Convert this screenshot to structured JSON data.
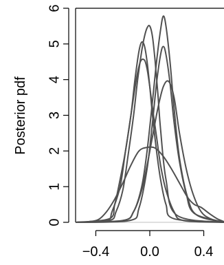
{
  "chart_data": {
    "type": "line",
    "title": "",
    "xlabel": "",
    "ylabel": "Posterior pdf",
    "xlim": [
      -0.55,
      0.55
    ],
    "ylim": [
      0,
      6
    ],
    "xticks": [
      -0.4,
      0.0,
      0.4
    ],
    "xtick_labels": [
      "−0.4",
      "0.0",
      "0.4"
    ],
    "yticks": [
      0,
      1,
      2,
      3,
      4,
      5,
      6
    ],
    "ytick_labels": [
      "0",
      "1",
      "2",
      "3",
      "4",
      "5",
      "6"
    ],
    "grid": false,
    "zero_baseline": true,
    "colors": {
      "lines": "#505050",
      "axes": "#000000",
      "baseline": "#bfbfbf"
    },
    "series": [
      {
        "x": [
          -0.55,
          -0.3,
          -0.25,
          -0.2,
          -0.16,
          -0.12,
          -0.09,
          -0.06,
          -0.04,
          -0.02,
          0.0,
          0.02,
          0.04,
          0.06,
          0.08,
          0.12,
          0.2,
          0.55
        ],
        "y": [
          0,
          0.05,
          0.3,
          0.9,
          1.9,
          3.0,
          4.0,
          4.8,
          5.2,
          5.45,
          5.5,
          5.2,
          4.5,
          3.6,
          2.6,
          1.2,
          0.2,
          0
        ]
      },
      {
        "x": [
          -0.55,
          -0.32,
          -0.28,
          -0.22,
          -0.18,
          -0.14,
          -0.11,
          -0.08,
          -0.06,
          -0.04,
          -0.02,
          0.0,
          0.02,
          0.05,
          0.08,
          0.12,
          0.18,
          0.55
        ],
        "y": [
          0,
          0.05,
          0.3,
          1.0,
          2.0,
          3.0,
          4.0,
          4.8,
          5.05,
          4.95,
          4.5,
          3.8,
          3.0,
          2.0,
          1.2,
          0.5,
          0.1,
          0
        ]
      },
      {
        "x": [
          -0.55,
          -0.3,
          -0.26,
          -0.22,
          -0.18,
          -0.14,
          -0.1,
          -0.07,
          -0.04,
          -0.02,
          0.0,
          0.02,
          0.05,
          0.08,
          0.12,
          0.18,
          0.25,
          0.55
        ],
        "y": [
          0,
          0.1,
          0.5,
          1.2,
          2.0,
          3.0,
          4.0,
          4.5,
          4.55,
          4.3,
          3.8,
          3.2,
          2.4,
          1.6,
          0.9,
          0.3,
          0.05,
          0
        ]
      },
      {
        "x": [
          -0.55,
          -0.2,
          -0.12,
          -0.06,
          -0.02,
          0.02,
          0.05,
          0.08,
          0.1,
          0.12,
          0.15,
          0.18,
          0.22,
          0.28,
          0.35,
          0.55
        ],
        "y": [
          0,
          0.05,
          0.3,
          1.0,
          2.0,
          3.4,
          4.5,
          5.4,
          5.78,
          5.5,
          4.5,
          3.2,
          1.8,
          0.7,
          0.2,
          0
        ]
      },
      {
        "x": [
          -0.55,
          -0.15,
          -0.08,
          -0.02,
          0.02,
          0.05,
          0.08,
          0.1,
          0.12,
          0.15,
          0.18,
          0.22,
          0.27,
          0.33,
          0.55
        ],
        "y": [
          0,
          0.05,
          0.4,
          1.5,
          2.8,
          3.9,
          4.7,
          4.93,
          4.7,
          3.9,
          2.8,
          1.7,
          0.8,
          0.25,
          0
        ]
      },
      {
        "x": [
          -0.55,
          -0.2,
          -0.12,
          -0.06,
          -0.02,
          0.02,
          0.06,
          0.1,
          0.14,
          0.18,
          0.22,
          0.27,
          0.32,
          0.38,
          0.45,
          0.55
        ],
        "y": [
          0,
          0.05,
          0.3,
          0.9,
          1.6,
          2.4,
          3.2,
          3.8,
          3.95,
          3.5,
          2.5,
          1.5,
          0.8,
          0.3,
          0.1,
          0
        ]
      },
      {
        "x": [
          -0.55,
          -0.45,
          -0.38,
          -0.32,
          -0.26,
          -0.2,
          -0.14,
          -0.08,
          -0.02,
          0.04,
          0.1,
          0.16,
          0.22,
          0.28,
          0.33,
          0.38,
          0.44,
          0.5,
          0.55
        ],
        "y": [
          0,
          0.02,
          0.08,
          0.3,
          0.65,
          1.1,
          1.6,
          2.0,
          2.1,
          2.08,
          1.85,
          1.5,
          1.1,
          0.7,
          0.5,
          0.42,
          0.25,
          0.1,
          0.02
        ]
      }
    ]
  }
}
